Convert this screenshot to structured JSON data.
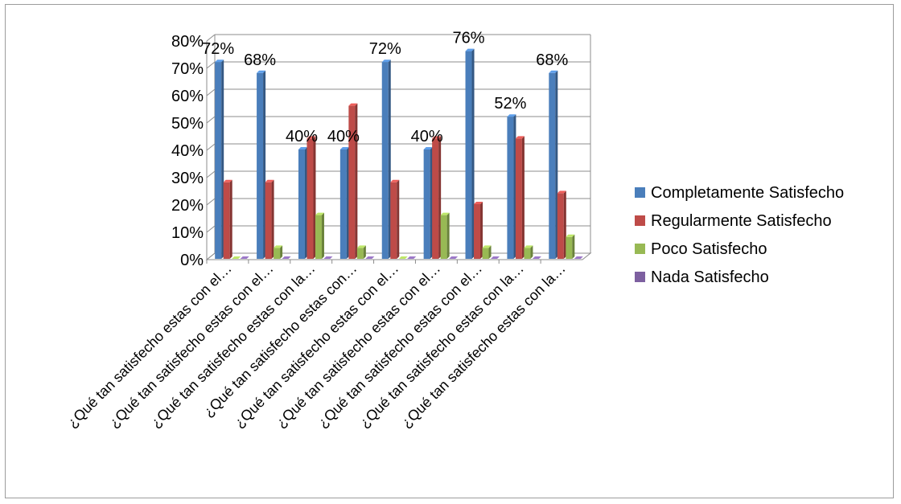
{
  "chart_data": {
    "type": "bar",
    "categories": [
      "¿Qué tan satisfecho estas con el…",
      "¿Qué tan satisfecho estas con el…",
      "¿Qué tan satisfecho estas con la…",
      "¿Qué tan satisfecho estas con…",
      "¿Qué tan satisfecho estas con el…",
      "¿Qué tan satisfecho estas con el…",
      "¿Qué tan satisfecho estas con el…",
      "¿Qué tan satisfecho estas con la…",
      "¿Qué tan satisfecho estas con la…"
    ],
    "series": [
      {
        "name": "Completamente Satisfecho",
        "color": "#4a7ebb",
        "values": [
          72,
          68,
          40,
          40,
          72,
          40,
          76,
          52,
          68
        ],
        "show_labels": true
      },
      {
        "name": "Regularmente Satisfecho",
        "color": "#be4b48",
        "values": [
          28,
          28,
          44,
          56,
          28,
          44,
          20,
          44,
          24
        ],
        "show_labels": false
      },
      {
        "name": "Poco Satisfecho",
        "color": "#98b954",
        "values": [
          0,
          4,
          16,
          4,
          0,
          16,
          4,
          4,
          8
        ],
        "show_labels": false
      },
      {
        "name": "Nada Satisfecho",
        "color": "#7d60a0",
        "values": [
          0,
          0,
          0,
          0,
          0,
          0,
          0,
          0,
          0
        ],
        "show_labels": false
      }
    ],
    "y_ticks": [
      "0%",
      "10%",
      "20%",
      "30%",
      "40%",
      "50%",
      "60%",
      "70%",
      "80%"
    ],
    "ylim": [
      0,
      80
    ],
    "unit": "%",
    "title": "",
    "xlabel": "",
    "ylabel": "",
    "grid": true,
    "legend_position": "right",
    "three_d": true
  }
}
